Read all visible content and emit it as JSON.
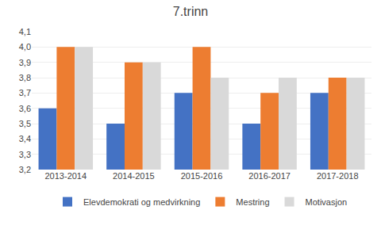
{
  "chart_data": {
    "type": "bar",
    "title": "7.trinn",
    "categories": [
      "2013-2014",
      "2014-2015",
      "2015-2016",
      "2016-2017",
      "2017-2018"
    ],
    "series": [
      {
        "name": "Elevdemokrati og medvirkning",
        "color": "#4472C4",
        "values": [
          3.6,
          3.5,
          3.7,
          3.5,
          3.7
        ]
      },
      {
        "name": "Mestring",
        "color": "#ED7D31",
        "values": [
          4.0,
          3.9,
          4.0,
          3.7,
          3.8
        ]
      },
      {
        "name": "Motivasjon",
        "color": "#D9D9D9",
        "values": [
          4.0,
          3.9,
          3.8,
          3.8,
          3.8
        ]
      }
    ],
    "ylim": [
      3.2,
      4.1
    ],
    "yticks": [
      {
        "value": 3.2,
        "label": "3,2"
      },
      {
        "value": 3.3,
        "label": "3,3"
      },
      {
        "value": 3.4,
        "label": "3,4"
      },
      {
        "value": 3.5,
        "label": "3,5"
      },
      {
        "value": 3.6,
        "label": "3,6"
      },
      {
        "value": 3.7,
        "label": "3,7"
      },
      {
        "value": 3.8,
        "label": "3,8"
      },
      {
        "value": 3.9,
        "label": "3,9"
      },
      {
        "value": 4.0,
        "label": "4,0"
      },
      {
        "value": 4.1,
        "label": "4,1"
      }
    ],
    "grid": true,
    "legend": "bottom"
  }
}
